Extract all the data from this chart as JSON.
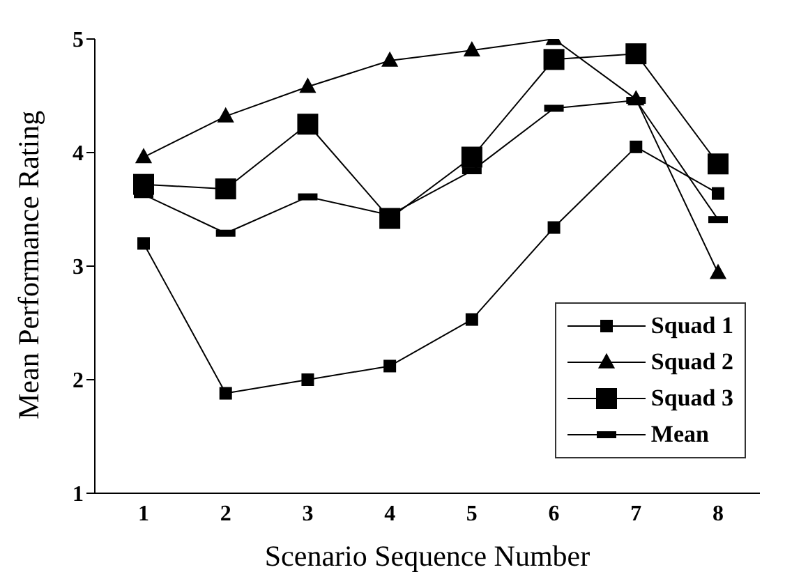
{
  "chart_data": {
    "type": "line",
    "xlabel": "Scenario Sequence Number",
    "ylabel": "Mean Performance Rating",
    "categories": [
      "1",
      "2",
      "3",
      "4",
      "5",
      "6",
      "7",
      "8"
    ],
    "ylim": [
      1,
      5
    ],
    "yticks": [
      1,
      2,
      3,
      4,
      5
    ],
    "grid": false,
    "legend": "bottom right",
    "line_style": "solid",
    "series": [
      {
        "name": "Squad 1",
        "color": "#000000",
        "marker": "square",
        "values": [
          3.2,
          1.88,
          2.0,
          2.12,
          2.53,
          3.34,
          4.05,
          3.64
        ]
      },
      {
        "name": "Squad 2",
        "color": "#000000",
        "marker": "triangle",
        "values": [
          3.96,
          4.32,
          4.58,
          4.81,
          4.9,
          5.0,
          4.47,
          2.94
        ]
      },
      {
        "name": "Squad 3",
        "color": "#000000",
        "marker": "square",
        "values": [
          3.72,
          3.68,
          4.25,
          3.42,
          3.96,
          4.82,
          4.87,
          3.9
        ]
      },
      {
        "name": "Mean",
        "color": "#000000",
        "marker": "square",
        "values": [
          3.63,
          3.29,
          3.61,
          3.45,
          3.84,
          4.39,
          4.46,
          3.41
        ]
      }
    ]
  }
}
